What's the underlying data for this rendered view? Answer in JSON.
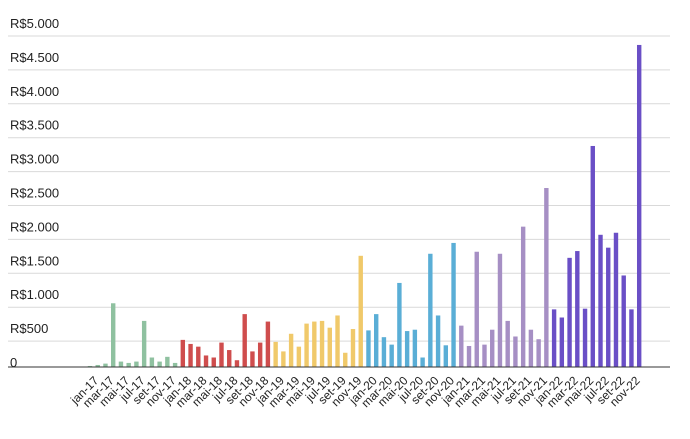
{
  "chart_data": {
    "type": "bar",
    "title": "",
    "xlabel": "",
    "ylabel": "",
    "ylim": [
      0,
      5000
    ],
    "grid": true,
    "legend": "none",
    "y_ticks": [
      {
        "value": 0,
        "label": "0"
      },
      {
        "value": 500,
        "label": "R$500"
      },
      {
        "value": 1000,
        "label": "R$1.000"
      },
      {
        "value": 1500,
        "label": "R$1.500"
      },
      {
        "value": 2000,
        "label": "R$2.000"
      },
      {
        "value": 2500,
        "label": "R$2.500"
      },
      {
        "value": 3000,
        "label": "R$3.000"
      },
      {
        "value": 3500,
        "label": "R$3.500"
      },
      {
        "value": 4000,
        "label": "R$4.000"
      },
      {
        "value": 4500,
        "label": "R$4.500"
      },
      {
        "value": 5000,
        "label": "R$5.000"
      }
    ],
    "x_tick_labels": [
      "jan-17",
      "mar-17",
      "mai-17",
      "jul-17",
      "set-17",
      "nov-17",
      "jan-18",
      "mar-18",
      "mai-18",
      "jul-18",
      "set-18",
      "nov-18",
      "jan-19",
      "mar-19",
      "mai-19",
      "jul-19",
      "set-19",
      "nov-19",
      "jan-20",
      "mar-20",
      "mai-20",
      "jul-20",
      "set-20",
      "nov-20",
      "jan-21",
      "mar-21",
      "mai-21",
      "jul-21",
      "set-21",
      "nov-21",
      "jan-22",
      "mar-22",
      "mai-22",
      "jul-22",
      "set-22",
      "nov-22"
    ],
    "year_colors": {
      "2017": "#8fc1a0",
      "2018": "#cf4d4d",
      "2019": "#f0c96a",
      "2020": "#5aaed6",
      "2021": "#a68fc4",
      "2022": "#6a4fc6"
    },
    "series": [
      {
        "year": "2017",
        "values": [
          15,
          30,
          50,
          940,
          80,
          60,
          80,
          680,
          140,
          80,
          150,
          60
        ]
      },
      {
        "year": "2018",
        "values": [
          400,
          340,
          300,
          170,
          140,
          360,
          250,
          100,
          780,
          230,
          360,
          670
        ]
      },
      {
        "year": "2019",
        "values": [
          370,
          230,
          490,
          300,
          640,
          670,
          680,
          580,
          760,
          210,
          560,
          1640
        ]
      },
      {
        "year": "2020",
        "values": [
          540,
          780,
          440,
          330,
          1240,
          530,
          550,
          140,
          1670,
          760,
          320,
          1830
        ]
      },
      {
        "year": "2021",
        "values": [
          610,
          310,
          1700,
          330,
          550,
          1670,
          680,
          450,
          2070,
          550,
          410,
          2640
        ]
      },
      {
        "year": "2022",
        "values": [
          850,
          730,
          1610,
          1710,
          860,
          3260,
          1950,
          1760,
          1980,
          1350,
          850,
          4750
        ]
      }
    ]
  }
}
